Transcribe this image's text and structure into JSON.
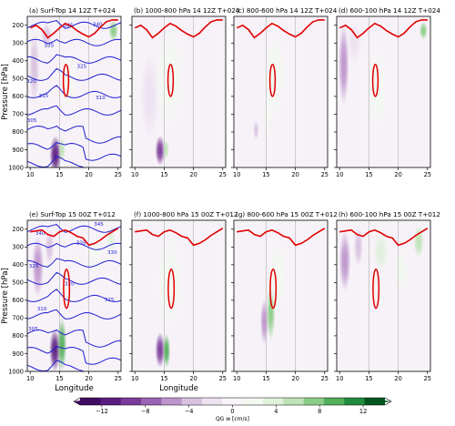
{
  "chart_data": {
    "type": "heatmap",
    "x_axis_label": "Longitude",
    "y_axis_label": "Pressure [hPa]",
    "x_ticks": [
      10,
      15,
      20,
      25
    ],
    "x_range": [
      9.5,
      25.5
    ],
    "y_ticks": [
      200,
      300,
      400,
      500,
      600,
      700,
      800,
      900,
      1000
    ],
    "y_range": [
      1000,
      150
    ],
    "colorbar": {
      "label": "QG w [cm/s]",
      "ticks": [
        -12,
        -8,
        -4,
        0,
        4,
        8,
        12
      ],
      "range": [
        -14,
        14
      ],
      "colors": [
        "#3f0c61",
        "#5b1d80",
        "#7a3b98",
        "#9b63b4",
        "#bd94cc",
        "#d9c2e0",
        "#ece2f0",
        "#f8f4f9",
        "#f3f9f1",
        "#e0f1dc",
        "#bfe2b6",
        "#8ccd86",
        "#53ae5a",
        "#228b3e",
        "#00561f"
      ]
    },
    "panels": [
      {
        "title": "(a) Surf-Top 14 12Z T+024",
        "row": 0,
        "col": 0,
        "blobs": [
          {
            "lon": 14.3,
            "p": 930,
            "rx": 1.0,
            "ry": 110,
            "value": -11
          },
          {
            "lon": 15.4,
            "p": 900,
            "rx": 0.6,
            "ry": 70,
            "value": 6
          },
          {
            "lon": 10.7,
            "p": 440,
            "rx": 0.9,
            "ry": 200,
            "value": -4
          },
          {
            "lon": 16.5,
            "p": 520,
            "rx": 1.5,
            "ry": 180,
            "value": 2
          },
          {
            "lon": 24.2,
            "p": 230,
            "rx": 0.8,
            "ry": 60,
            "value": 8
          },
          {
            "lon": 12.8,
            "p": 260,
            "rx": 0.9,
            "ry": 70,
            "value": -3
          }
        ],
        "jet": [
          {
            "lon": 16.1,
            "p": 510,
            "rx": 0.45,
            "ry": 90
          }
        ],
        "contour_labels": [
          {
            "text": "345",
            "lon": 16.5,
            "p": 210
          },
          {
            "text": "340",
            "lon": 21.5,
            "p": 205
          },
          {
            "text": "335",
            "lon": 13.2,
            "p": 322
          },
          {
            "text": "325",
            "lon": 18.8,
            "p": 440
          },
          {
            "text": "320",
            "lon": 10.2,
            "p": 525
          },
          {
            "text": "315",
            "lon": 12.3,
            "p": 605
          },
          {
            "text": "310",
            "lon": 22.0,
            "p": 615
          },
          {
            "text": "305",
            "lon": 10.3,
            "p": 745
          }
        ]
      },
      {
        "title": "(b) 1000-800 hPa 14 12Z T+024",
        "row": 0,
        "col": 1,
        "blobs": [
          {
            "lon": 14.3,
            "p": 905,
            "rx": 0.85,
            "ry": 85,
            "value": -9
          },
          {
            "lon": 15.3,
            "p": 900,
            "rx": 0.55,
            "ry": 55,
            "value": 5
          },
          {
            "lon": 16.0,
            "p": 500,
            "rx": 2.6,
            "ry": 300,
            "value": 1
          },
          {
            "lon": 12.5,
            "p": 600,
            "rx": 1.6,
            "ry": 260,
            "value": -1
          }
        ],
        "jet": [
          {
            "lon": 16.1,
            "p": 510,
            "rx": 0.45,
            "ry": 90
          }
        ]
      },
      {
        "title": "(c) 800-600 hPa 14 12Z T+024",
        "row": 0,
        "col": 2,
        "blobs": [
          {
            "lon": 13.3,
            "p": 790,
            "rx": 0.5,
            "ry": 55,
            "value": -3
          },
          {
            "lon": 15.3,
            "p": 700,
            "rx": 0.7,
            "ry": 150,
            "value": 2
          },
          {
            "lon": 16.5,
            "p": 480,
            "rx": 2.0,
            "ry": 260,
            "value": 1
          }
        ],
        "jet": [
          {
            "lon": 16.1,
            "p": 510,
            "rx": 0.45,
            "ry": 90
          }
        ]
      },
      {
        "title": "(d) 600-100 hPa 14 12Z T+024",
        "row": 0,
        "col": 3,
        "blobs": [
          {
            "lon": 10.7,
            "p": 420,
            "rx": 0.9,
            "ry": 230,
            "value": -5
          },
          {
            "lon": 24.3,
            "p": 230,
            "rx": 0.7,
            "ry": 50,
            "value": 8
          },
          {
            "lon": 12.5,
            "p": 300,
            "rx": 1.3,
            "ry": 120,
            "value": -2
          },
          {
            "lon": 16.5,
            "p": 560,
            "rx": 1.8,
            "ry": 250,
            "value": 1
          }
        ],
        "jet": [
          {
            "lon": 16.1,
            "p": 510,
            "rx": 0.45,
            "ry": 90
          }
        ]
      },
      {
        "title": "(e) Surf-Top 15 00Z T+012",
        "row": 1,
        "col": 0,
        "blobs": [
          {
            "lon": 14.2,
            "p": 880,
            "rx": 0.95,
            "ry": 120,
            "value": -12
          },
          {
            "lon": 15.4,
            "p": 850,
            "rx": 0.8,
            "ry": 150,
            "value": 9
          },
          {
            "lon": 11.3,
            "p": 410,
            "rx": 1.0,
            "ry": 170,
            "value": -5
          },
          {
            "lon": 13.3,
            "p": 300,
            "rx": 0.8,
            "ry": 100,
            "value": -3
          },
          {
            "lon": 21.0,
            "p": 330,
            "rx": 1.3,
            "ry": 120,
            "value": 2
          },
          {
            "lon": 23.8,
            "p": 260,
            "rx": 0.8,
            "ry": 70,
            "value": 4
          }
        ],
        "jet": [
          {
            "lon": 16.2,
            "p": 535,
            "rx": 0.5,
            "ry": 110
          }
        ],
        "contour_labels": [
          {
            "text": "345",
            "lon": 21.7,
            "p": 180
          },
          {
            "text": "340",
            "lon": 11.7,
            "p": 232
          },
          {
            "text": "335",
            "lon": 18.7,
            "p": 285
          },
          {
            "text": "330",
            "lon": 24.0,
            "p": 340
          },
          {
            "text": "325",
            "lon": 10.6,
            "p": 415
          },
          {
            "text": "320",
            "lon": 16.7,
            "p": 515
          },
          {
            "text": "315",
            "lon": 23.5,
            "p": 605
          },
          {
            "text": "310",
            "lon": 12.0,
            "p": 658
          },
          {
            "text": "305",
            "lon": 10.5,
            "p": 770
          }
        ]
      },
      {
        "title": "(f) 1000-800 hPa 15 00Z T+012",
        "row": 1,
        "col": 1,
        "blobs": [
          {
            "lon": 14.3,
            "p": 880,
            "rx": 0.85,
            "ry": 100,
            "value": -9
          },
          {
            "lon": 15.4,
            "p": 885,
            "rx": 0.65,
            "ry": 95,
            "value": 9
          },
          {
            "lon": 16.0,
            "p": 500,
            "rx": 2.4,
            "ry": 280,
            "value": 1
          }
        ],
        "jet": [
          {
            "lon": 16.2,
            "p": 535,
            "rx": 0.5,
            "ry": 110
          }
        ]
      },
      {
        "title": "(g) 800-600 hPa 15 00Z T+012",
        "row": 1,
        "col": 2,
        "blobs": [
          {
            "lon": 14.7,
            "p": 720,
            "rx": 0.7,
            "ry": 130,
            "value": -6
          },
          {
            "lon": 15.8,
            "p": 670,
            "rx": 0.75,
            "ry": 150,
            "value": 8
          },
          {
            "lon": 17.0,
            "p": 460,
            "rx": 1.8,
            "ry": 220,
            "value": 1
          }
        ],
        "jet": [
          {
            "lon": 16.2,
            "p": 535,
            "rx": 0.5,
            "ry": 110
          }
        ]
      },
      {
        "title": "(h) 600-100 hPa 15 00Z T+012",
        "row": 1,
        "col": 3,
        "blobs": [
          {
            "lon": 10.9,
            "p": 380,
            "rx": 1.0,
            "ry": 170,
            "value": -6
          },
          {
            "lon": 13.2,
            "p": 300,
            "rx": 0.8,
            "ry": 110,
            "value": -3
          },
          {
            "lon": 17.0,
            "p": 330,
            "rx": 1.3,
            "ry": 110,
            "value": 3
          },
          {
            "lon": 23.5,
            "p": 270,
            "rx": 0.9,
            "ry": 90,
            "value": 5
          },
          {
            "lon": 20.5,
            "p": 430,
            "rx": 1.3,
            "ry": 140,
            "value": 2
          }
        ],
        "jet": [
          {
            "lon": 16.2,
            "p": 535,
            "rx": 0.5,
            "ry": 110
          }
        ]
      }
    ],
    "tropopause_top": [
      [
        10,
        215
      ],
      [
        11,
        200
      ],
      [
        12,
        225
      ],
      [
        13,
        270
      ],
      [
        14,
        245
      ],
      [
        15,
        215
      ],
      [
        16,
        190
      ],
      [
        17,
        205
      ],
      [
        18,
        230
      ],
      [
        19,
        250
      ],
      [
        20,
        265
      ],
      [
        21,
        245
      ],
      [
        22,
        210
      ],
      [
        23,
        180
      ],
      [
        24,
        170
      ],
      [
        25,
        170
      ]
    ],
    "tropopause_bottom": [
      [
        10,
        215
      ],
      [
        11,
        210
      ],
      [
        12,
        205
      ],
      [
        13,
        230
      ],
      [
        14,
        240
      ],
      [
        15,
        215
      ],
      [
        16,
        205
      ],
      [
        17,
        220
      ],
      [
        18,
        240
      ],
      [
        19,
        250
      ],
      [
        20,
        290
      ],
      [
        21,
        280
      ],
      [
        22,
        260
      ],
      [
        23,
        235
      ],
      [
        24,
        215
      ],
      [
        25,
        195
      ]
    ],
    "theta_levels_top": [
      345,
      340,
      335,
      330,
      325,
      320,
      315,
      310,
      305
    ],
    "theta_levels_bottom": [
      345,
      340,
      335,
      330,
      325,
      320,
      315,
      310,
      305
    ]
  }
}
